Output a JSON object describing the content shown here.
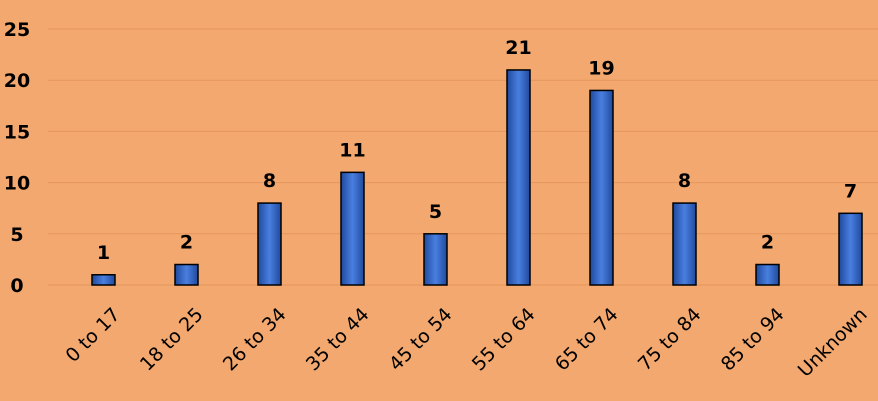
{
  "chart_data": {
    "type": "bar",
    "categories": [
      "0 to 17",
      "18 to 25",
      "26 to 34",
      "35 to 44",
      "45 to 54",
      "55 to 64",
      "65 to 74",
      "75 to 84",
      "85 to 94",
      "Unknown"
    ],
    "values": [
      1,
      2,
      8,
      11,
      5,
      21,
      19,
      8,
      2,
      7
    ],
    "ylim": [
      0,
      25
    ],
    "yticks": [
      0,
      5,
      10,
      15,
      20,
      25
    ],
    "grid": true,
    "data_labels": true,
    "colors": {
      "background": "#F2A86E",
      "bar": "#2E5FBF",
      "bar_edge": "#000000",
      "gridline": "#E5965C"
    }
  }
}
